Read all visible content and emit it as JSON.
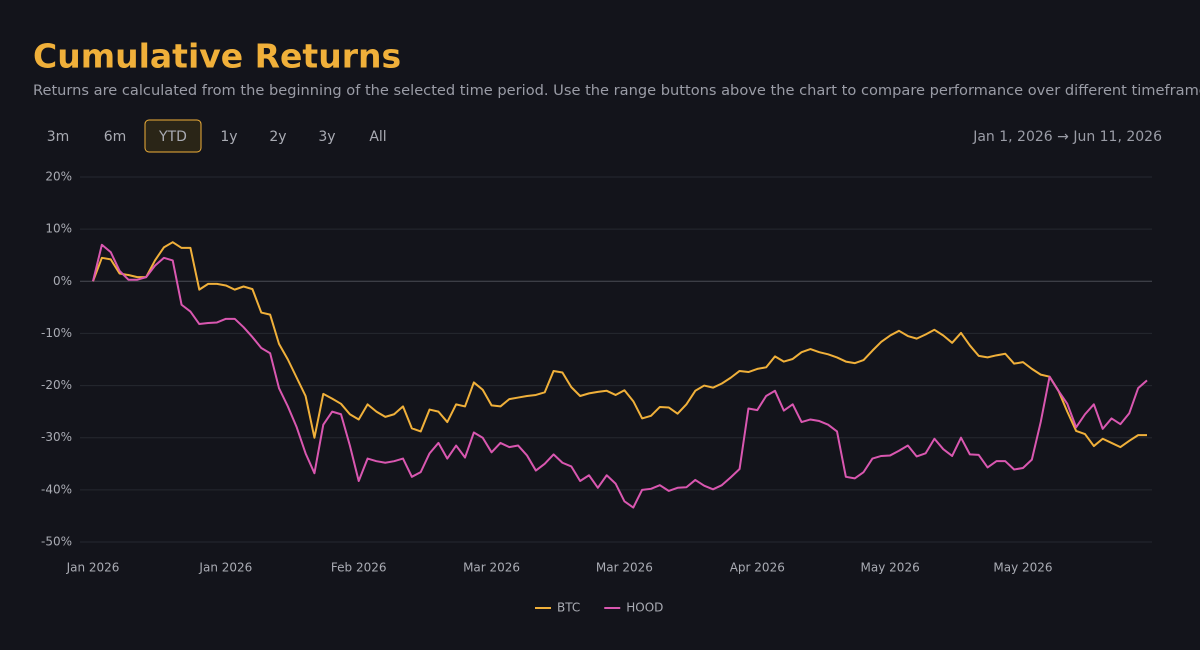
{
  "chart_data": {
    "type": "line",
    "title": "Cumulative Returns",
    "subtitle": "Returns are calculated from the beginning of the selected time period. Use the range buttons above the chart to compare performance over different timeframes.",
    "categories": [
      "Jan 2026",
      null,
      null,
      null,
      null,
      null,
      null,
      null,
      null,
      null,
      null,
      null,
      null,
      null,
      null,
      "Jan 2026",
      null,
      null,
      null,
      null,
      null,
      null,
      null,
      null,
      null,
      null,
      null,
      null,
      null,
      null,
      "Feb 2026",
      null,
      null,
      null,
      null,
      null,
      null,
      null,
      null,
      null,
      null,
      null,
      null,
      null,
      null,
      "Mar 2026",
      null,
      null,
      null,
      null,
      null,
      null,
      null,
      null,
      null,
      null,
      null,
      null,
      null,
      null,
      "Mar 2026",
      null,
      null,
      null,
      null,
      null,
      null,
      null,
      null,
      null,
      null,
      null,
      null,
      null,
      null,
      "Apr 2026",
      null,
      null,
      null,
      null,
      null,
      null,
      null,
      null,
      null,
      null,
      null,
      null,
      null,
      null,
      "May 2026",
      null,
      null,
      null,
      null,
      null,
      null,
      null,
      null,
      null,
      null,
      null,
      null,
      null,
      null,
      "May 2026",
      null,
      null,
      null,
      null,
      null,
      null,
      null,
      null,
      null,
      null,
      null,
      null,
      null,
      null
    ],
    "series": [
      {
        "name": "BTC",
        "color": "#f0b03a",
        "values": [
          0,
          4.5,
          4.2,
          1.5,
          1.2,
          0.8,
          0.8,
          4,
          6.5,
          7.5,
          6.4,
          6.4,
          -1.6,
          -0.5,
          -0.5,
          -0.8,
          -1.6,
          -1,
          -1.5,
          -6,
          -6.4,
          -12,
          -15,
          -18.5,
          -22,
          -30,
          -21.6,
          -22.5,
          -23.5,
          -25.5,
          -26.5,
          -23.6,
          -25,
          -26,
          -25.5,
          -24,
          -28.2,
          -28.8,
          -24.6,
          -25,
          -27,
          -23.6,
          -24,
          -19.4,
          -20.8,
          -23.8,
          -24,
          -22.6,
          -22.3,
          -22,
          -21.8,
          -21.3,
          -17.2,
          -17.5,
          -20.3,
          -22,
          -21.5,
          -21.2,
          -21,
          -21.8,
          -20.9,
          -23,
          -26.3,
          -25.8,
          -24.1,
          -24.2,
          -25.4,
          -23.6,
          -21,
          -20,
          -20.4,
          -19.6,
          -18.5,
          -17.2,
          -17.4,
          -16.8,
          -16.5,
          -14.4,
          -15.4,
          -14.9,
          -13.6,
          -13,
          -13.6,
          -14,
          -14.6,
          -15.4,
          -15.7,
          -15.1,
          -13.3,
          -11.6,
          -10.4,
          -9.5,
          -10.5,
          -11,
          -10.2,
          -9.3,
          -10.4,
          -11.8,
          -9.9,
          -12.3,
          -14.3,
          -14.6,
          -14.2,
          -13.9,
          -15.8,
          -15.5,
          -16.8,
          -17.9,
          -18.3,
          -21,
          -25,
          -28.7,
          -29.3,
          -31.6,
          -30.2,
          -31,
          -31.8,
          -30.6,
          -29.5,
          -29.5
        ]
      },
      {
        "name": "HOOD",
        "color": "#d957b0",
        "values": [
          0,
          7,
          5.6,
          2,
          0.3,
          0.3,
          0.8,
          3,
          4.5,
          4,
          -4.5,
          -5.8,
          -8.2,
          -8,
          -7.9,
          -7.2,
          -7.2,
          -8.8,
          -10.7,
          -12.8,
          -13.8,
          -20.5,
          -24,
          -28,
          -33,
          -36.8,
          -27.5,
          -25,
          -25.5,
          -31.5,
          -38.3,
          -34,
          -34.5,
          -34.8,
          -34.5,
          -34,
          -37.5,
          -36.6,
          -33,
          -31,
          -34,
          -31.5,
          -33.8,
          -29,
          -30,
          -32.8,
          -31,
          -31.8,
          -31.5,
          -33.4,
          -36.3,
          -35,
          -33.2,
          -34.8,
          -35.5,
          -38.3,
          -37.2,
          -39.6,
          -37.2,
          -38.8,
          -42.2,
          -43.4,
          -40,
          -39.8,
          -39.1,
          -40.2,
          -39.6,
          -39.5,
          -38.1,
          -39.2,
          -39.9,
          -39.1,
          -37.6,
          -36,
          -24.4,
          -24.7,
          -22,
          -21,
          -24.8,
          -23.6,
          -27,
          -26.5,
          -26.8,
          -27.5,
          -28.8,
          -37.5,
          -37.8,
          -36.6,
          -34,
          -33.5,
          -33.4,
          -32.5,
          -31.5,
          -33.6,
          -33,
          -30.2,
          -32.2,
          -33.5,
          -30,
          -33.2,
          -33.3,
          -35.7,
          -34.5,
          -34.5,
          -36.1,
          -35.8,
          -34.2,
          -27,
          -18.3,
          -21,
          -23.5,
          -28,
          -25.5,
          -23.6,
          -28.3,
          -26.3,
          -27.4,
          -25.3,
          -20.5,
          -19
        ]
      }
    ],
    "ylim": [
      -50,
      20
    ],
    "yticks": [
      {
        "value": -50,
        "label": "-50%"
      },
      {
        "value": -40,
        "label": "-40%"
      },
      {
        "value": -30,
        "label": "-30%"
      },
      {
        "value": -20,
        "label": "-20%"
      },
      {
        "value": -10,
        "label": "-10%"
      },
      {
        "value": 0,
        "label": "0%"
      },
      {
        "value": 10,
        "label": "10%"
      },
      {
        "value": 20,
        "label": "20%"
      }
    ],
    "grid": true,
    "legend": "bottom"
  },
  "range_buttons": [
    "3m",
    "6m",
    "YTD",
    "1y",
    "2y",
    "3y",
    "All"
  ],
  "active_range": "YTD",
  "date_range": "Jan 1, 2026 → Jun 11, 2026"
}
